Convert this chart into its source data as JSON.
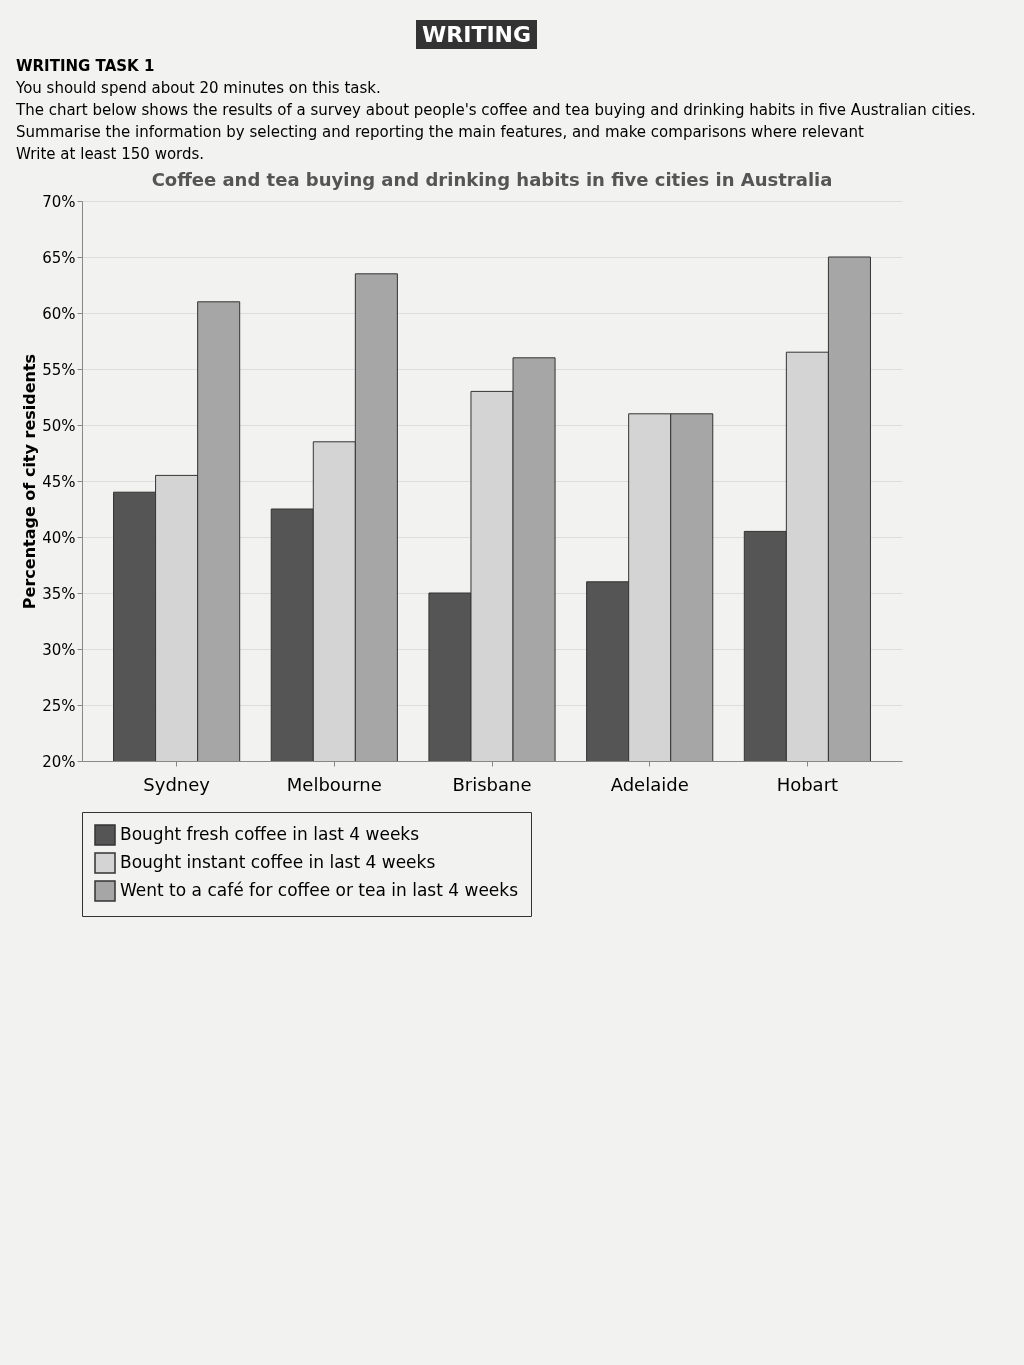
{
  "chart_data": {
    "type": "bar",
    "title": "Coffee and tea buying and drinking habits in five cities in Australia",
    "ylabel": "Percentage of city residents",
    "annotations": [
      "WRITING",
      "WRITING TASK 1",
      "You should spend about 20 minutes on this task.",
      "The chart below shows the results of a survey about people's coffee and tea buying and drinking habits in five Australian cities.",
      "Summarise the information by selecting and reporting the main features, and make comparisons where relevant",
      "Write at least 150 words."
    ],
    "categories": [
      "Sydney",
      "Melbourne",
      "Brisbane",
      "Adelaide",
      "Hobart"
    ],
    "series": [
      {
        "name": "Bought fresh coffee in last 4 weeks",
        "color": "#555555",
        "values": [
          44,
          42.5,
          35,
          36,
          40.5
        ]
      },
      {
        "name": "Bought instant coffee in last 4 weeks",
        "color": "#d4d4d4",
        "values": [
          45.5,
          48.5,
          53,
          51,
          56.5
        ]
      },
      {
        "name": "Went to a café for coffee or tea in last 4 weeks",
        "color": "#a6a6a6",
        "values": [
          61,
          63.5,
          56,
          51,
          65
        ]
      }
    ],
    "ylim": [
      20,
      70
    ],
    "yticks": [
      {
        "value": 20,
        "label": "20%"
      },
      {
        "value": 25,
        "label": "25%"
      },
      {
        "value": 30,
        "label": "30%"
      },
      {
        "value": 35,
        "label": "35%"
      },
      {
        "value": 40,
        "label": "40%"
      },
      {
        "value": 45,
        "label": "45%"
      },
      {
        "value": 50,
        "label": "50%"
      },
      {
        "value": 55,
        "label": "55%"
      },
      {
        "value": 60,
        "label": "60%"
      },
      {
        "value": 65,
        "label": "65%"
      },
      {
        "value": 70,
        "label": "70%"
      }
    ],
    "grid": "y",
    "legend": "bottom"
  }
}
